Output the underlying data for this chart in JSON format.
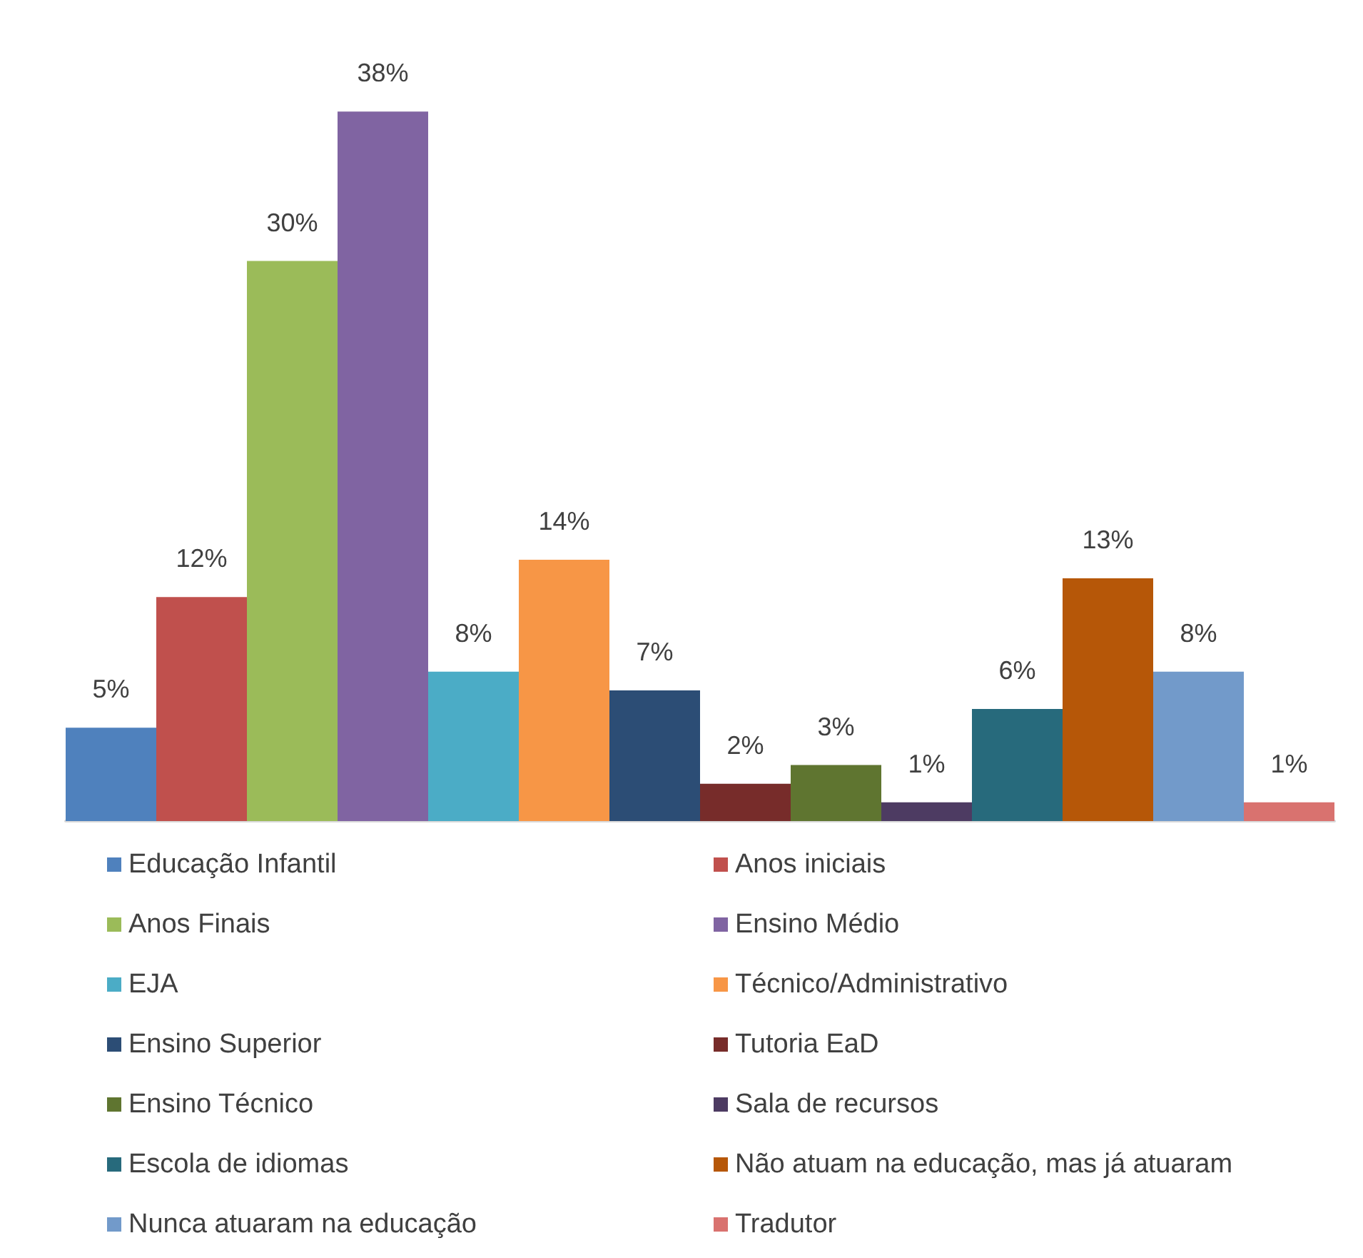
{
  "chart_data": {
    "type": "bar",
    "categories": [
      null
    ],
    "legend": "bottom",
    "series": [
      {
        "name": "Educação Infantil",
        "color": "#4f81bd",
        "values": [
          5
        ],
        "value_labels": [
          "5%"
        ]
      },
      {
        "name": "Anos iniciais",
        "color": "#c0504d",
        "values": [
          12
        ],
        "value_labels": [
          "12%"
        ]
      },
      {
        "name": "Anos Finais",
        "color": "#9bbb59",
        "values": [
          30
        ],
        "value_labels": [
          "30%"
        ]
      },
      {
        "name": "Ensino Médio",
        "color": "#8064a2",
        "values": [
          38
        ],
        "value_labels": [
          "38%"
        ]
      },
      {
        "name": "EJA",
        "color": "#4bacc6",
        "values": [
          8
        ],
        "value_labels": [
          "8%"
        ]
      },
      {
        "name": "Técnico/Administrativo",
        "color": "#f79646",
        "values": [
          14
        ],
        "value_labels": [
          "14%"
        ]
      },
      {
        "name": "Ensino Superior",
        "color": "#2c4d75",
        "values": [
          7
        ],
        "value_labels": [
          "7%"
        ]
      },
      {
        "name": "Tutoria EaD",
        "color": "#772c2a",
        "values": [
          2
        ],
        "value_labels": [
          "2%"
        ]
      },
      {
        "name": "Ensino Técnico",
        "color": "#5f7530",
        "values": [
          3
        ],
        "value_labels": [
          "3%"
        ]
      },
      {
        "name": "Sala de recursos",
        "color": "#4d3b62",
        "values": [
          1
        ],
        "value_labels": [
          "1%"
        ]
      },
      {
        "name": "Escola de idiomas",
        "color": "#276a7c",
        "values": [
          6
        ],
        "value_labels": [
          "6%"
        ]
      },
      {
        "name": "Não atuam na educação, mas já atuaram",
        "color": "#b65708",
        "values": [
          13
        ],
        "value_labels": [
          "13%"
        ]
      },
      {
        "name": "Nunca atuaram na educação",
        "color": "#729aca",
        "values": [
          8
        ],
        "value_labels": [
          "8%"
        ]
      },
      {
        "name": "Tradutor",
        "color": "#d9726f",
        "values": [
          1
        ],
        "value_labels": [
          "1%"
        ]
      }
    ]
  }
}
